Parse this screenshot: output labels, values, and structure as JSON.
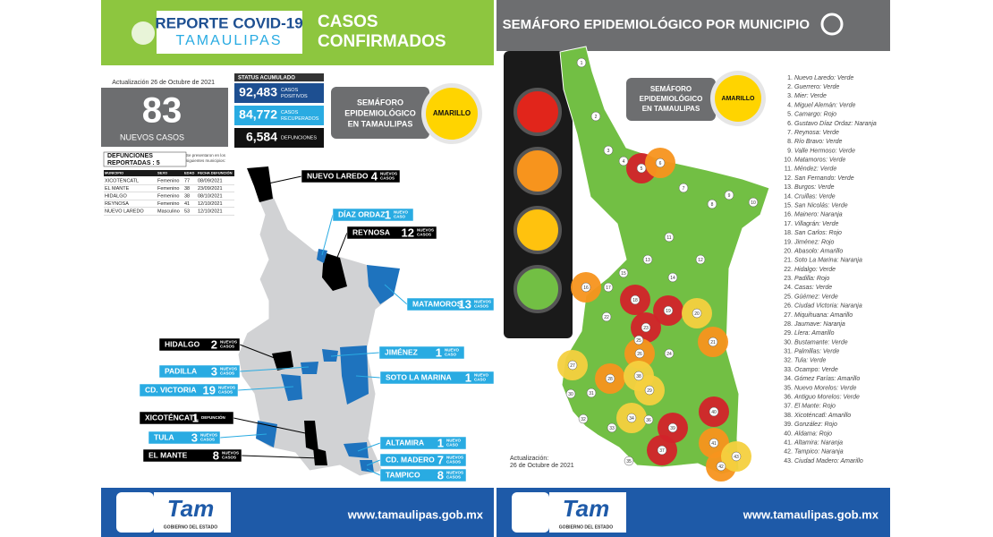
{
  "left": {
    "header": {
      "title1": "REPORTE COVID-19",
      "title2": "TAMAULIPAS",
      "casos": "CASOS",
      "confirmados": "CONFIRMADOS"
    },
    "update": "Actualización 26 de Octubre de 2021",
    "new_cases": {
      "value": "83",
      "label": "NUEVOS CASOS"
    },
    "status": {
      "title": "STATUS ACUMULADO",
      "items": [
        {
          "value": "92,483",
          "label": [
            "CASOS",
            "POSITIVOS"
          ],
          "color": "#1d4f91"
        },
        {
          "value": "84,772",
          "label": [
            "CASOS",
            "RECUPERADOS"
          ],
          "color": "#29abe2"
        },
        {
          "value": "6,584",
          "label": [
            "DEFUNCIONES"
          ],
          "color": "#111111"
        }
      ]
    },
    "semaforo": {
      "lines": [
        "SEMÁFORO",
        "EPIDEMIOLÓGICO",
        "EN TAMAULIPAS"
      ],
      "status": "AMARILLO"
    },
    "deaths": {
      "title": [
        "DEFUNCIONES",
        "REPORTADAS : 5"
      ],
      "note": [
        "Se presentaron en los",
        "siguientes municipios:"
      ],
      "columns": [
        "MUNICIPIO",
        "SEXO",
        "EDAD",
        "FECHA DEFUNCIÓN"
      ],
      "rows": [
        [
          "XICOTÉNCATL",
          "Femenino",
          "77",
          "08/09/2021"
        ],
        [
          "EL MANTE",
          "Femenino",
          "38",
          "23/09/2021"
        ],
        [
          "HIDALGO",
          "Femenino",
          "38",
          "08/10/2021"
        ],
        [
          "REYNOSA",
          "Femenino",
          "41",
          "12/10/2021"
        ],
        [
          "NUEVO LAREDO",
          "Masculino",
          "53",
          "12/10/2021"
        ]
      ]
    },
    "callouts": [
      {
        "name": "NUEVO LAREDO",
        "count": "4",
        "unit": [
          "NUEVOS",
          "CASOS"
        ],
        "color": "#000000"
      },
      {
        "name": "DÍAZ ORDAZ",
        "count": "1",
        "unit": [
          "NUEVO",
          "CASO"
        ],
        "color": "#29abe2"
      },
      {
        "name": "REYNOSA",
        "count": "12",
        "unit": [
          "NUEVOS",
          "CASOS"
        ],
        "color": "#000000"
      },
      {
        "name": "MATAMOROS",
        "count": "13",
        "unit": [
          "NUEVOS",
          "CASOS"
        ],
        "color": "#29abe2"
      },
      {
        "name": "HIDALGO",
        "count": "2",
        "unit": [
          "NUEVOS",
          "CASOS"
        ],
        "color": "#000000"
      },
      {
        "name": "JIMÉNEZ",
        "count": "1",
        "unit": [
          "NUEVO",
          "CASO"
        ],
        "color": "#29abe2"
      },
      {
        "name": "PADILLA",
        "count": "3",
        "unit": [
          "NUEVOS",
          "CASOS"
        ],
        "color": "#29abe2"
      },
      {
        "name": "SOTO LA MARINA",
        "count": "1",
        "unit": [
          "NUEVO",
          "CASO"
        ],
        "color": "#29abe2"
      },
      {
        "name": "CD. VICTORIA",
        "count": "19",
        "unit": [
          "NUEVOS",
          "CASOS"
        ],
        "color": "#29abe2"
      },
      {
        "name": "XICOTÉNCATL",
        "count": "1",
        "unit": [
          "DEFUNCIÓN"
        ],
        "color": "#000000"
      },
      {
        "name": "TULA",
        "count": "3",
        "unit": [
          "NUEVOS",
          "CASOS"
        ],
        "color": "#29abe2"
      },
      {
        "name": "EL MANTE",
        "count": "8",
        "unit": [
          "NUEVOS",
          "CASOS"
        ],
        "color": "#000000"
      },
      {
        "name": "ALTAMIRA",
        "count": "1",
        "unit": [
          "NUEVO",
          "CASO"
        ],
        "color": "#29abe2"
      },
      {
        "name": "CD. MADERO",
        "count": "7",
        "unit": [
          "NUEVOS",
          "CASOS"
        ],
        "color": "#29abe2"
      },
      {
        "name": "TAMPICO",
        "count": "8",
        "unit": [
          "NUEVOS",
          "CASOS"
        ],
        "color": "#29abe2"
      }
    ],
    "footer": {
      "logo": "Tam",
      "sub": "GOBIERNO DEL ESTADO",
      "url": "www.tamaulipas.gob.mx"
    }
  },
  "right": {
    "title": "SEMÁFORO EPIDEMIOLÓGICO POR MUNICIPIO",
    "semaforo": {
      "lines": [
        "SEMÁFORO",
        "EPIDEMIOLÓGICO",
        "EN TAMAULIPAS"
      ],
      "status": "AMARILLO"
    },
    "update": [
      "Actualización:",
      "26 de Octubre de 2021"
    ],
    "municipios": [
      {
        "num": "1.",
        "map_num": "1",
        "label": "Nuevo Laredo: Verde",
        "color": "#72bf44"
      },
      {
        "num": "2.",
        "map_num": "2",
        "label": "Guerrero: Verde",
        "color": "#72bf44"
      },
      {
        "num": "3.",
        "map_num": "3",
        "label": "Mier: Verde",
        "color": "#72bf44"
      },
      {
        "num": "4.",
        "map_num": "4",
        "label": "Miguel Alemán: Verde",
        "color": "#72bf44"
      },
      {
        "num": "5.",
        "map_num": "5",
        "label": "Camargo: Rojo",
        "color": "#d2232a"
      },
      {
        "num": "6.",
        "map_num": "6",
        "label": "Gustavo Díaz Ordaz: Naranja",
        "color": "#f7941d"
      },
      {
        "num": "7.",
        "map_num": "7",
        "label": "Reynosa: Verde",
        "color": "#72bf44"
      },
      {
        "num": "8.",
        "map_num": "8",
        "label": "Río Bravo: Verde",
        "color": "#72bf44"
      },
      {
        "num": "9.",
        "map_num": "9",
        "label": "Valle Hermoso: Verde",
        "color": "#72bf44"
      },
      {
        "num": "10.",
        "map_num": "10",
        "label": "Matamoros: Verde",
        "color": "#72bf44"
      },
      {
        "num": "11.",
        "map_num": "11",
        "label": "Méndez: Verde",
        "color": "#72bf44"
      },
      {
        "num": "12.",
        "map_num": "12",
        "label": "San Fernando: Verde",
        "color": "#72bf44"
      },
      {
        "num": "13.",
        "map_num": "13",
        "label": "Burgos: Verde",
        "color": "#72bf44"
      },
      {
        "num": "14.",
        "map_num": "14",
        "label": "Cruillas: Verde",
        "color": "#72bf44"
      },
      {
        "num": "15.",
        "map_num": "15",
        "label": "San Nicolás: Verde",
        "color": "#72bf44"
      },
      {
        "num": "16.",
        "map_num": "16",
        "label": "Mainero: Naranja",
        "color": "#f7941d"
      },
      {
        "num": "17.",
        "map_num": "17",
        "label": "Villagrán: Verde",
        "color": "#72bf44"
      },
      {
        "num": "18.",
        "map_num": "18",
        "label": "San Carlos: Rojo",
        "color": "#d2232a"
      },
      {
        "num": "19.",
        "map_num": "19",
        "label": "Jiménez: Rojo",
        "color": "#d2232a"
      },
      {
        "num": "20.",
        "map_num": "20",
        "label": "Abasolo: Amarillo",
        "color": "#f4d03f"
      },
      {
        "num": "21.",
        "map_num": "21",
        "label": "Soto La Marina: Naranja",
        "color": "#f7941d"
      },
      {
        "num": "22.",
        "map_num": "22",
        "label": "Hidalgo: Verde",
        "color": "#72bf44"
      },
      {
        "num": "23.",
        "map_num": "23",
        "label": "Padilla: Rojo",
        "color": "#d2232a"
      },
      {
        "num": "24.",
        "map_num": "24",
        "label": "Casas: Verde",
        "color": "#72bf44"
      },
      {
        "num": "25.",
        "map_num": "25",
        "label": "Güémez: Verde",
        "color": "#72bf44"
      },
      {
        "num": "26.",
        "map_num": "26",
        "label": "Ciudad Victoria: Naranja",
        "color": "#f7941d"
      },
      {
        "num": "27.",
        "map_num": "27",
        "label": "Miquihuana: Amarillo",
        "color": "#f4d03f"
      },
      {
        "num": "28.",
        "map_num": "28",
        "label": "Jaumave: Naranja",
        "color": "#f7941d"
      },
      {
        "num": "29.",
        "map_num": "29",
        "label": "Llera: Amarillo",
        "color": "#f4d03f"
      },
      {
        "num": "30.",
        "map_num": "30",
        "label": "Bustamante: Verde",
        "color": "#72bf44"
      },
      {
        "num": "31.",
        "map_num": "31",
        "label": "Palmillas: Verde",
        "color": "#72bf44"
      },
      {
        "num": "32.",
        "map_num": "32",
        "label": "Tula: Verde",
        "color": "#72bf44"
      },
      {
        "num": "33.",
        "map_num": "33",
        "label": "Ocampo: Verde",
        "color": "#72bf44"
      },
      {
        "num": "34.",
        "map_num": "34",
        "label": "Gómez Farías: Amarillo",
        "color": "#f4d03f"
      },
      {
        "num": "35.",
        "map_num": "35",
        "label": "Nuevo Morelos: Verde",
        "color": "#72bf44"
      },
      {
        "num": "36.",
        "map_num": "36",
        "label": "Antiguo Morelos: Verde",
        "color": "#72bf44"
      },
      {
        "num": "37.",
        "map_num": "37",
        "label": "El Mante: Rojo",
        "color": "#d2232a"
      },
      {
        "num": "38.",
        "map_num": "38",
        "label": "Xicoténcatl: Amarillo",
        "color": "#f4d03f"
      },
      {
        "num": "39.",
        "map_num": "39",
        "label": "González: Rojo",
        "color": "#d2232a"
      },
      {
        "num": "40.",
        "map_num": "40",
        "label": "Aldama: Rojo",
        "color": "#d2232a"
      },
      {
        "num": "41.",
        "map_num": "41",
        "label": "Altamira: Naranja",
        "color": "#f7941d"
      },
      {
        "num": "42.",
        "map_num": "42",
        "label": "Tampico: Naranja",
        "color": "#f7941d"
      },
      {
        "num": "43.",
        "map_num": "43",
        "label": "Ciudad Madero: Amarillo",
        "color": "#f4d03f"
      }
    ],
    "footer": {
      "logo": "Tam",
      "sub": "GOBIERNO DEL ESTADO",
      "url": "www.tamaulipas.gob.mx"
    }
  }
}
